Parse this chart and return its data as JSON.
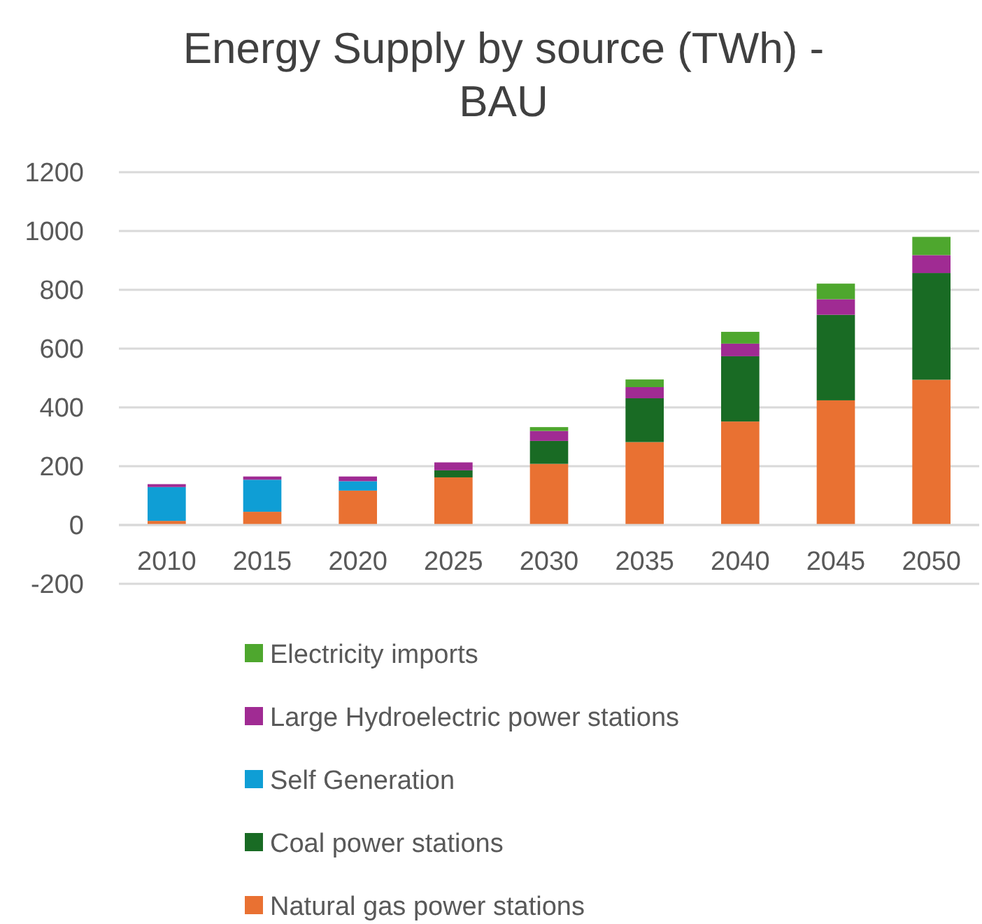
{
  "chart_data": {
    "type": "bar",
    "title": "Energy Supply by source (TWh) - BAU",
    "stacked": true,
    "categories": [
      "2010",
      "2015",
      "2020",
      "2025",
      "2030",
      "2035",
      "2040",
      "2045",
      "2050"
    ],
    "series": [
      {
        "name": "Natural gas power stations",
        "color": "#e97132",
        "values": [
          14,
          45,
          117,
          162,
          208,
          282,
          352,
          424,
          494
        ]
      },
      {
        "name": "Coal power stations",
        "color": "#196b24",
        "values": [
          0,
          0,
          0,
          24,
          78,
          149,
          222,
          291,
          363
        ]
      },
      {
        "name": "Self Generation",
        "color": "#0f9ed5",
        "values": [
          115,
          109,
          32,
          0,
          0,
          0,
          0,
          0,
          0
        ]
      },
      {
        "name": "Large Hydroelectric power stations",
        "color": "#a02b93",
        "values": [
          10,
          11,
          16,
          27,
          34,
          38,
          43,
          53,
          61
        ]
      },
      {
        "name": "Electricity imports",
        "color": "#4ea72e",
        "values": [
          0,
          0,
          0,
          0,
          13,
          26,
          40,
          53,
          62
        ]
      }
    ],
    "ylim": [
      -200,
      1200
    ],
    "yticks": [
      -200,
      0,
      200,
      400,
      600,
      800,
      1000,
      1200
    ],
    "grid": "y",
    "legend": "bottom"
  }
}
